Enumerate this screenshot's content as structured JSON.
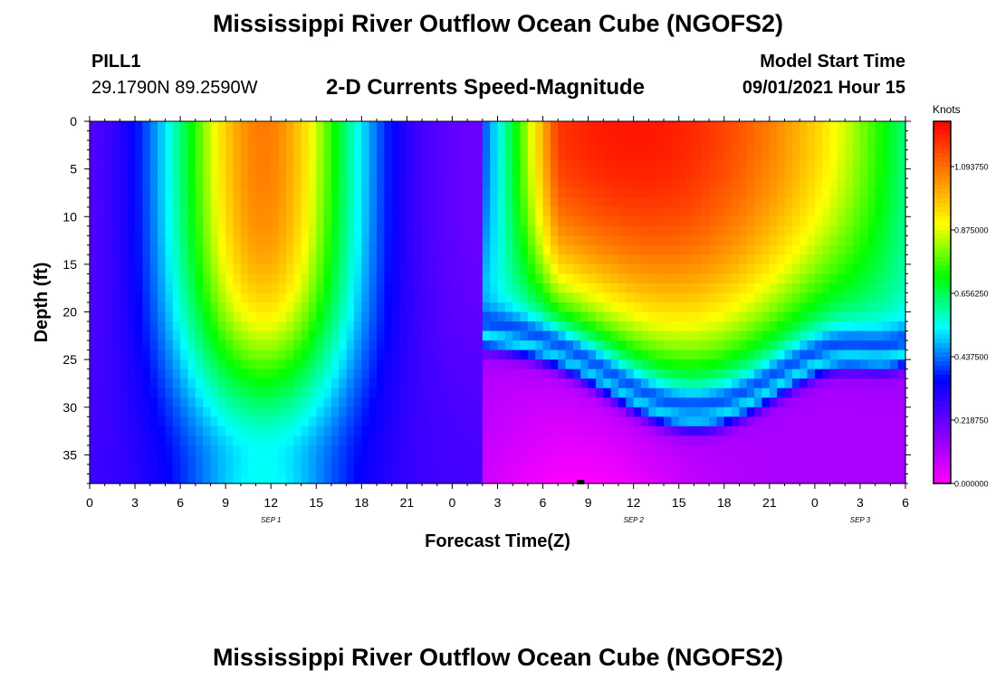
{
  "header": {
    "title": "Mississippi River Outflow Ocean Cube (NGOFS2)",
    "station": "PILL1",
    "coordinates": "29.1790N  89.2590W",
    "subtitle": "2-D Currents Speed-Magnitude",
    "model_start_label": "Model Start Time",
    "model_start_value": "09/01/2021 Hour 15"
  },
  "footer": {
    "title": "Mississippi River Outflow Ocean Cube (NGOFS2)"
  },
  "chart_data": {
    "type": "heatmap",
    "ylabel": "Depth (ft)",
    "xlabel": "Forecast Time(Z)",
    "y_ticks": [
      0,
      5,
      10,
      15,
      20,
      25,
      30,
      35
    ],
    "ylim": [
      0,
      38
    ],
    "x_hours_range": [
      0,
      54
    ],
    "x_tick_labels": [
      "0",
      "3",
      "6",
      "9",
      "12",
      "15",
      "18",
      "21",
      "0",
      "3",
      "6",
      "9",
      "12",
      "15",
      "18",
      "21",
      "0",
      "3",
      "6"
    ],
    "date_labels": [
      {
        "text": "SEP 1",
        "hour": 12
      },
      {
        "text": "SEP 2",
        "hour": 36
      },
      {
        "text": "SEP 3",
        "hour": 51
      }
    ],
    "colorbar": {
      "title": "Knots",
      "min": 0.0,
      "max": 1.25,
      "tick_values": [
        0.0,
        0.21875,
        0.4375,
        0.65625,
        0.875,
        1.09375
      ],
      "tick_labels": [
        "0.000000",
        "0.218750",
        "0.437500",
        "0.656250",
        "0.875000",
        "1.093750"
      ],
      "colors": [
        "#ff00ff",
        "#7f00ff",
        "#0000ff",
        "#00ffff",
        "#00ff00",
        "#ffff00",
        "#ff7f00",
        "#ff0000"
      ]
    },
    "marker": {
      "hour": 32.5,
      "depth": 38
    }
  }
}
